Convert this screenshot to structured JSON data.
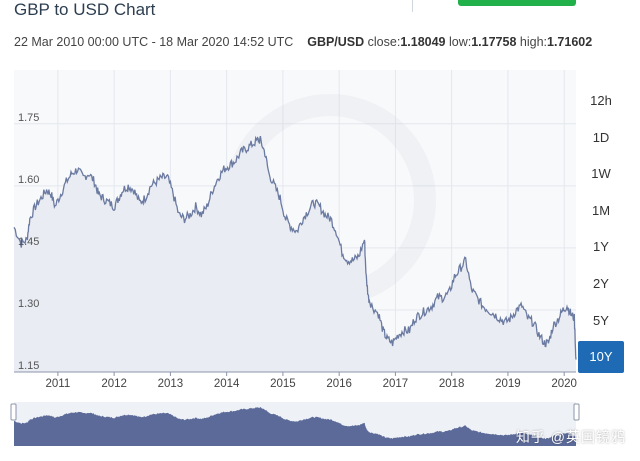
{
  "header": {
    "title": "GBP to USD Chart",
    "range_text": "22 Mar 2010 00:00 UTC - 18 Mar 2020 14:52 UTC",
    "pair": "GBP/USD",
    "close_label": "close:",
    "close_value": "1.18049",
    "low_label": "low:",
    "low_value": "1.17758",
    "high_label": "high:",
    "high_value": "1.71602"
  },
  "timeframes": [
    {
      "label": "12h",
      "active": false
    },
    {
      "label": "1D",
      "active": false
    },
    {
      "label": "1W",
      "active": false
    },
    {
      "label": "1M",
      "active": false
    },
    {
      "label": "1Y",
      "active": false
    },
    {
      "label": "2Y",
      "active": false
    },
    {
      "label": "5Y",
      "active": false
    },
    {
      "label": "10Y",
      "active": true
    }
  ],
  "watermark": "知乎 @英国镜鸦",
  "colors": {
    "line": "#6b7aa1",
    "area": "#e9ecf3",
    "navigator": "#5c6a99",
    "active_button": "#1f6ab5",
    "header_accent": "#22b04b"
  },
  "chart_data": {
    "type": "area",
    "x_unit": "year",
    "x": [
      2010.22,
      2010.35,
      2010.45,
      2010.5,
      2010.6,
      2010.7,
      2010.8,
      2010.88,
      2010.95,
      2011.05,
      2011.15,
      2011.25,
      2011.35,
      2011.45,
      2011.55,
      2011.65,
      2011.72,
      2011.8,
      2011.9,
      2012.0,
      2012.08,
      2012.15,
      2012.25,
      2012.35,
      2012.45,
      2012.55,
      2012.65,
      2012.75,
      2012.85,
      2012.95,
      2013.05,
      2013.15,
      2013.25,
      2013.35,
      2013.45,
      2013.55,
      2013.65,
      2013.75,
      2013.85,
      2013.95,
      2014.05,
      2014.15,
      2014.25,
      2014.35,
      2014.45,
      2014.55,
      2014.6,
      2014.68,
      2014.75,
      2014.85,
      2014.95,
      2015.05,
      2015.15,
      2015.25,
      2015.35,
      2015.45,
      2015.55,
      2015.65,
      2015.75,
      2015.85,
      2015.95,
      2016.05,
      2016.15,
      2016.25,
      2016.35,
      2016.45,
      2016.48,
      2016.52,
      2016.58,
      2016.7,
      2016.78,
      2016.85,
      2016.95,
      2017.05,
      2017.15,
      2017.25,
      2017.35,
      2017.45,
      2017.55,
      2017.65,
      2017.75,
      2017.85,
      2017.95,
      2018.05,
      2018.15,
      2018.25,
      2018.35,
      2018.45,
      2018.55,
      2018.65,
      2018.75,
      2018.85,
      2018.95,
      2019.05,
      2019.15,
      2019.25,
      2019.35,
      2019.45,
      2019.55,
      2019.65,
      2019.72,
      2019.8,
      2019.9,
      2019.98,
      2020.05,
      2020.12,
      2020.18,
      2020.21
    ],
    "values": [
      1.5,
      1.46,
      1.47,
      1.52,
      1.55,
      1.57,
      1.59,
      1.58,
      1.55,
      1.58,
      1.61,
      1.63,
      1.64,
      1.62,
      1.63,
      1.61,
      1.58,
      1.57,
      1.56,
      1.55,
      1.57,
      1.59,
      1.6,
      1.59,
      1.56,
      1.57,
      1.6,
      1.61,
      1.62,
      1.62,
      1.58,
      1.53,
      1.52,
      1.53,
      1.55,
      1.53,
      1.55,
      1.59,
      1.62,
      1.64,
      1.65,
      1.66,
      1.68,
      1.69,
      1.7,
      1.71,
      1.71,
      1.68,
      1.63,
      1.6,
      1.57,
      1.52,
      1.5,
      1.49,
      1.52,
      1.54,
      1.56,
      1.55,
      1.53,
      1.52,
      1.49,
      1.44,
      1.42,
      1.42,
      1.43,
      1.47,
      1.38,
      1.33,
      1.31,
      1.29,
      1.25,
      1.23,
      1.22,
      1.24,
      1.25,
      1.25,
      1.28,
      1.29,
      1.3,
      1.31,
      1.33,
      1.33,
      1.34,
      1.38,
      1.4,
      1.42,
      1.35,
      1.33,
      1.31,
      1.3,
      1.29,
      1.28,
      1.27,
      1.28,
      1.3,
      1.31,
      1.28,
      1.27,
      1.24,
      1.22,
      1.22,
      1.26,
      1.28,
      1.3,
      1.31,
      1.29,
      1.28,
      1.18
    ],
    "ylim": [
      1.15,
      1.88
    ],
    "xlim": [
      2010.22,
      2020.21
    ],
    "y_ticks": [
      1.15,
      1.3,
      1.45,
      1.6,
      1.75
    ],
    "y_tick_labels": [
      "1.15",
      "1.30",
      "1.45",
      "1.60",
      "1.75"
    ],
    "x_ticks": [
      2011,
      2012,
      2013,
      2014,
      2015,
      2016,
      2017,
      2018,
      2019,
      2020
    ],
    "x_tick_labels": [
      "2011",
      "2012",
      "2013",
      "2014",
      "2015",
      "2016",
      "2017",
      "2018",
      "2019",
      "2020"
    ],
    "grid": true
  }
}
